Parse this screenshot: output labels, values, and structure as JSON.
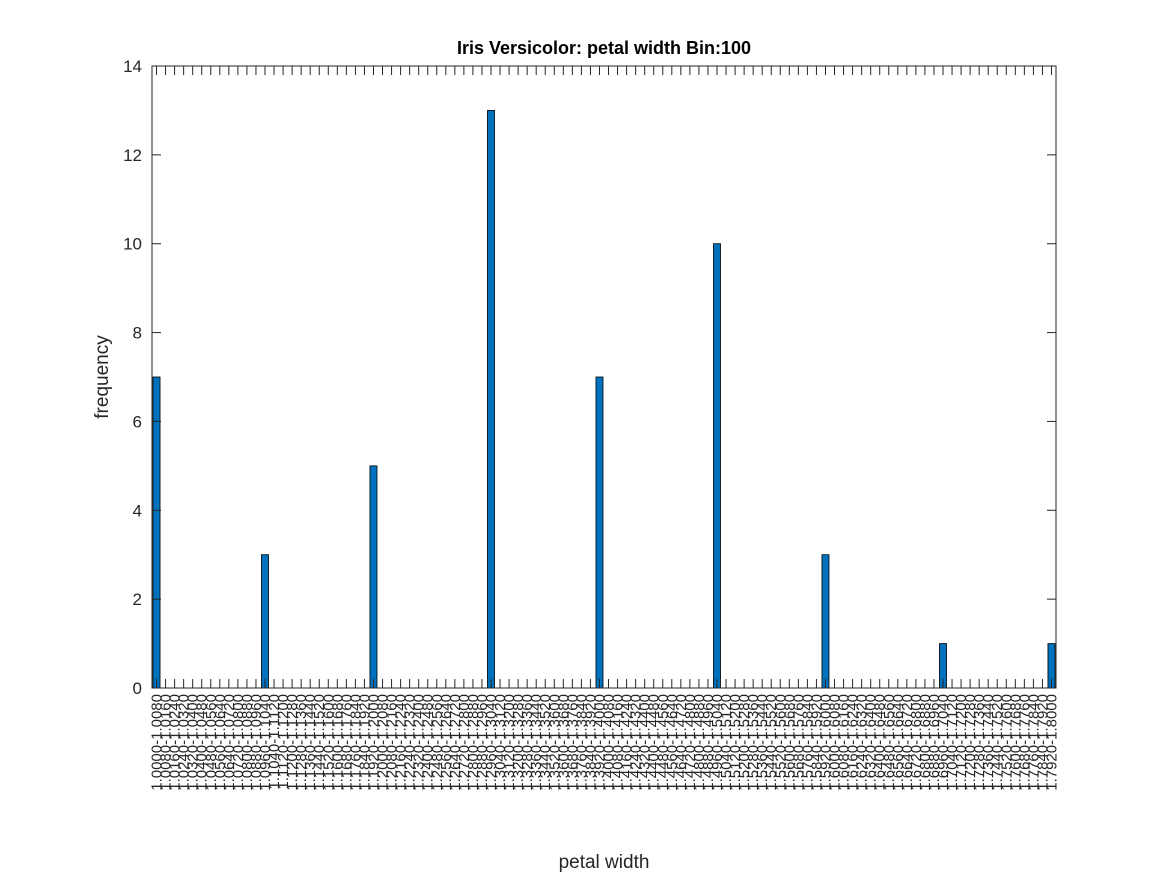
{
  "chart_data": {
    "type": "bar",
    "title": "Iris Versicolor: petal width Bin:100",
    "xlabel": "petal width",
    "ylabel": "frequency",
    "ylim": [
      0,
      14
    ],
    "yticks": [
      0,
      2,
      4,
      6,
      8,
      10,
      12,
      14
    ],
    "grid": false,
    "bar_color": "#0072BD",
    "bin_start": 1.0,
    "bin_step": 0.008,
    "bin_count": 100,
    "tick_format": "{a}-{b}",
    "nonzero_bins": [
      {
        "bin": "1.0000-1.0080",
        "value": 7
      },
      {
        "bin": "1.0960-1.1040",
        "value": 3
      },
      {
        "bin": "1.1920-1.2000",
        "value": 5
      },
      {
        "bin": "1.2960-1.3040",
        "value": 13
      },
      {
        "bin": "1.3920-1.4000",
        "value": 7
      },
      {
        "bin": "1.4960-1.5040",
        "value": 10
      },
      {
        "bin": "1.5920-1.6000",
        "value": 3
      },
      {
        "bin": "1.6960-1.7040",
        "value": 1
      },
      {
        "bin": "1.7920-1.8000",
        "value": 1
      }
    ],
    "values": [
      7,
      0,
      0,
      0,
      0,
      0,
      0,
      0,
      0,
      0,
      0,
      0,
      3,
      0,
      0,
      0,
      0,
      0,
      0,
      0,
      0,
      0,
      0,
      0,
      5,
      0,
      0,
      0,
      0,
      0,
      0,
      0,
      0,
      0,
      0,
      0,
      0,
      13,
      0,
      0,
      0,
      0,
      0,
      0,
      0,
      0,
      0,
      0,
      0,
      7,
      0,
      0,
      0,
      0,
      0,
      0,
      0,
      0,
      0,
      0,
      0,
      0,
      10,
      0,
      0,
      0,
      0,
      0,
      0,
      0,
      0,
      0,
      0,
      0,
      3,
      0,
      0,
      0,
      0,
      0,
      0,
      0,
      0,
      0,
      0,
      0,
      0,
      1,
      0,
      0,
      0,
      0,
      0,
      0,
      0,
      0,
      0,
      0,
      0,
      1
    ]
  }
}
